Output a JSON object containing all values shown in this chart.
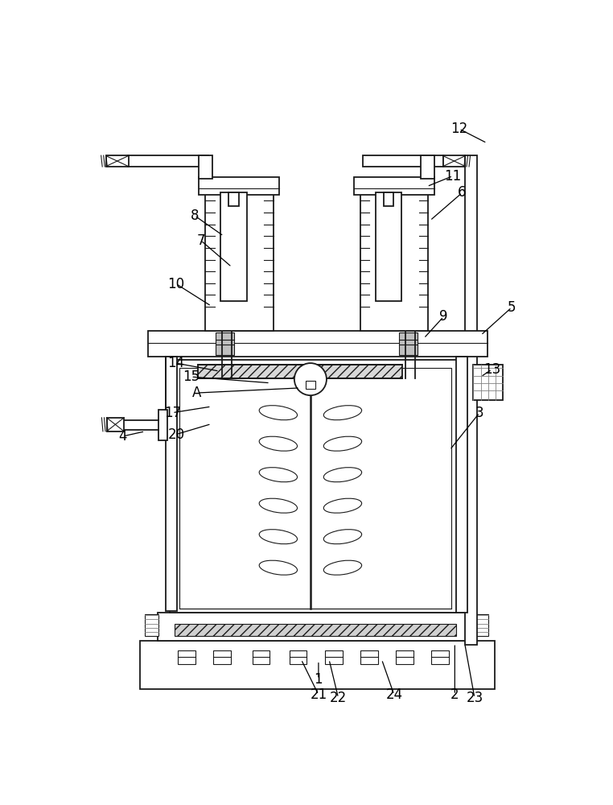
{
  "bg": "#ffffff",
  "lc": "#1a1a1a",
  "lw": 1.3,
  "lw_thin": 0.8,
  "lw_med": 1.0,
  "fig_w": 7.62,
  "fig_h": 10.0,
  "dpi": 100,
  "annotations": [
    [
      "12",
      615,
      52,
      660,
      75
    ],
    [
      "11",
      605,
      128,
      563,
      145
    ],
    [
      "6",
      620,
      155,
      568,
      200
    ],
    [
      "8",
      188,
      192,
      235,
      225
    ],
    [
      "7",
      198,
      232,
      248,
      275
    ],
    [
      "10",
      158,
      302,
      215,
      338
    ],
    [
      "9",
      590,
      355,
      558,
      390
    ],
    [
      "5",
      700,
      340,
      650,
      385
    ],
    [
      "14",
      158,
      430,
      228,
      443
    ],
    [
      "15",
      182,
      452,
      310,
      462
    ],
    [
      "A",
      192,
      478,
      358,
      470
    ],
    [
      "13",
      668,
      440,
      650,
      452
    ],
    [
      "17",
      152,
      510,
      215,
      500
    ],
    [
      "20",
      158,
      545,
      215,
      528
    ],
    [
      "4",
      72,
      548,
      108,
      540
    ],
    [
      "3",
      648,
      510,
      600,
      570
    ],
    [
      "1",
      388,
      940,
      388,
      910
    ],
    [
      "21",
      388,
      965,
      360,
      908
    ],
    [
      "22",
      420,
      970,
      405,
      908
    ],
    [
      "24",
      510,
      965,
      490,
      908
    ],
    [
      "2",
      608,
      965,
      608,
      882
    ],
    [
      "23",
      640,
      970,
      624,
      882
    ]
  ]
}
